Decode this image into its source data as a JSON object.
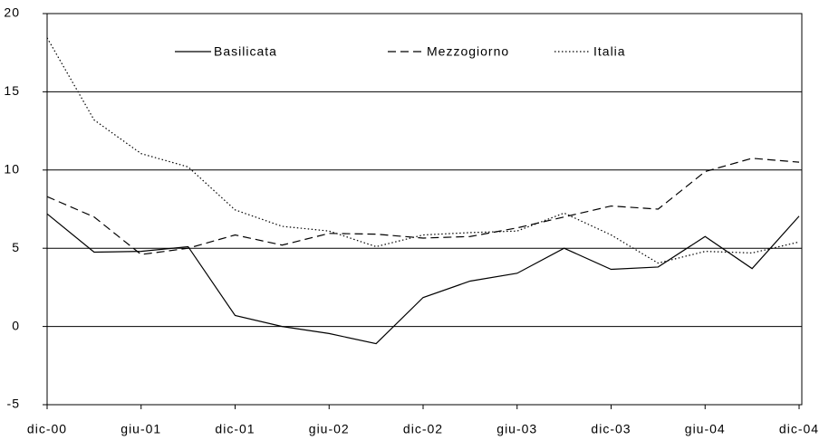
{
  "chart_data": {
    "type": "line",
    "categories": [
      "dic-00",
      null,
      "giu-01",
      null,
      "dic-01",
      null,
      "giu-02",
      null,
      "dic-02",
      null,
      "giu-03",
      null,
      "dic-03",
      null,
      "giu-04",
      null,
      "dic-04"
    ],
    "series": [
      {
        "name": "Basilicata",
        "color": "#000000",
        "dash": "solid",
        "values": [
          7.2,
          4.75,
          4.8,
          5.1,
          0.7,
          0.0,
          -0.45,
          -1.1,
          1.85,
          2.9,
          3.4,
          5.0,
          3.65,
          3.8,
          5.75,
          3.7,
          7.05
        ]
      },
      {
        "name": "Mezzogiorno",
        "color": "#000000",
        "dash": "dashed",
        "values": [
          8.3,
          7.0,
          4.6,
          5.0,
          5.85,
          5.2,
          5.95,
          5.9,
          5.65,
          5.75,
          6.3,
          7.0,
          7.7,
          7.5,
          9.9,
          10.75,
          10.5
        ]
      },
      {
        "name": "Italia",
        "color": "#000000",
        "dash": "dotted",
        "values": [
          18.45,
          13.2,
          11.05,
          10.2,
          7.45,
          6.4,
          6.1,
          5.1,
          5.85,
          6.0,
          6.1,
          7.25,
          5.85,
          4.05,
          4.8,
          4.7,
          5.4
        ]
      }
    ],
    "ylim": [
      -5,
      20
    ],
    "yticks": [
      -5,
      0,
      5,
      10,
      15,
      20
    ],
    "grid": true,
    "legend": "top"
  }
}
